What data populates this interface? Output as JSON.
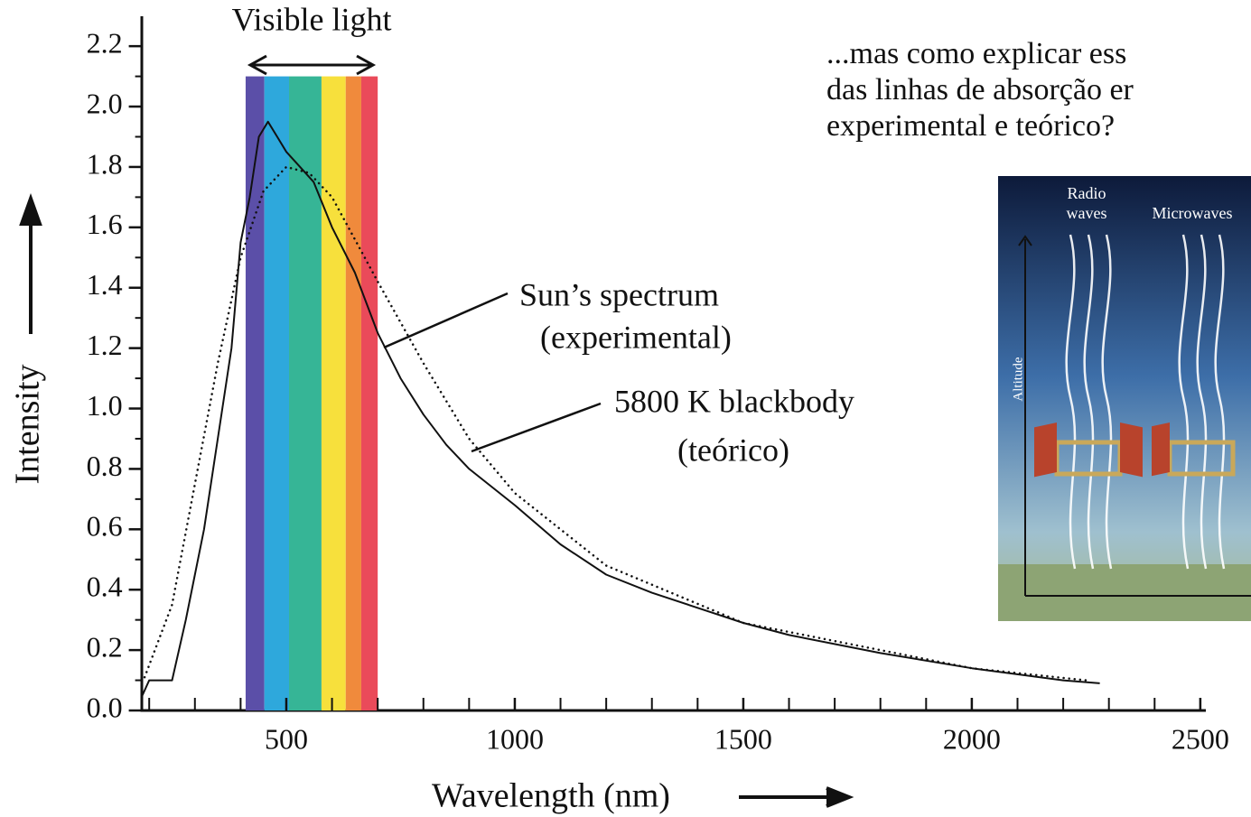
{
  "chart_data": {
    "type": "line",
    "xlabel": "Wavelength (nm)",
    "ylabel": "Intensity",
    "xlim": [
      185,
      2520
    ],
    "ylim": [
      0,
      2.3
    ],
    "xticks": [
      500,
      1000,
      1500,
      2000,
      2500
    ],
    "xminorticks": [
      200,
      300,
      400,
      600,
      700,
      800,
      900,
      1100,
      1200,
      1300,
      1400,
      1600,
      1700,
      1800,
      1900,
      2100,
      2200,
      2300,
      2400
    ],
    "yticks": [
      {
        "value": 0,
        "label": "0.0"
      },
      0.2,
      0.4,
      0.6,
      0.8,
      {
        "value": 1,
        "label": "1.0"
      },
      1.2,
      1.4,
      1.6,
      1.8,
      {
        "value": 2,
        "label": "2.0"
      },
      2.2
    ],
    "yminorticks": [
      0.1,
      0.3,
      0.5,
      0.7,
      0.9,
      1.1,
      1.3,
      1.5,
      1.7,
      1.9,
      2.1
    ],
    "band_label": "Visible light",
    "band_top": 2.1,
    "bands": [
      {
        "from": 411,
        "to": 452,
        "color": "#5b4fa8"
      },
      {
        "from": 452,
        "to": 506,
        "color": "#2ea8dc"
      },
      {
        "from": 506,
        "to": 577,
        "color": "#36b596"
      },
      {
        "from": 577,
        "to": 630,
        "color": "#f7e03c"
      },
      {
        "from": 630,
        "to": 664,
        "color": "#f08a3c"
      },
      {
        "from": 664,
        "to": 700,
        "color": "#ea4a5a"
      }
    ],
    "series": [
      {
        "name": "Sun’s spectrum",
        "sublabel": "(experimental)",
        "color": "#111111",
        "style": "solid",
        "x": [
          185,
          200,
          250,
          280,
          300,
          320,
          350,
          380,
          400,
          420,
          440,
          460,
          480,
          500,
          530,
          560,
          600,
          650,
          700,
          750,
          800,
          850,
          900,
          1000,
          1100,
          1200,
          1300,
          1400,
          1500,
          1600,
          1800,
          2000,
          2200,
          2280
        ],
        "values": [
          0.05,
          0.1,
          0.1,
          0.3,
          0.45,
          0.6,
          0.9,
          1.2,
          1.55,
          1.7,
          1.9,
          1.95,
          1.9,
          1.85,
          1.8,
          1.75,
          1.6,
          1.45,
          1.25,
          1.1,
          0.98,
          0.88,
          0.8,
          0.68,
          0.55,
          0.45,
          0.39,
          0.34,
          0.29,
          0.25,
          0.19,
          0.14,
          0.1,
          0.09
        ]
      },
      {
        "name": "5800 K blackbody",
        "sublabel": "(teórico)",
        "color": "#111111",
        "style": "dotted",
        "x": [
          190,
          250,
          300,
          350,
          400,
          450,
          500,
          550,
          600,
          700,
          800,
          900,
          1000,
          1200,
          1500,
          2000,
          2250
        ],
        "values": [
          0.11,
          0.35,
          0.75,
          1.15,
          1.5,
          1.72,
          1.8,
          1.78,
          1.7,
          1.42,
          1.15,
          0.9,
          0.72,
          0.48,
          0.29,
          0.14,
          0.1
        ]
      }
    ]
  },
  "slide_text": [
    "...mas como explicar ess",
    "das linhas de absorção er",
    "experimental e teórico?"
  ],
  "inset": {
    "labels": [
      "Radio",
      "waves",
      "Microwaves",
      "Altitude"
    ]
  }
}
